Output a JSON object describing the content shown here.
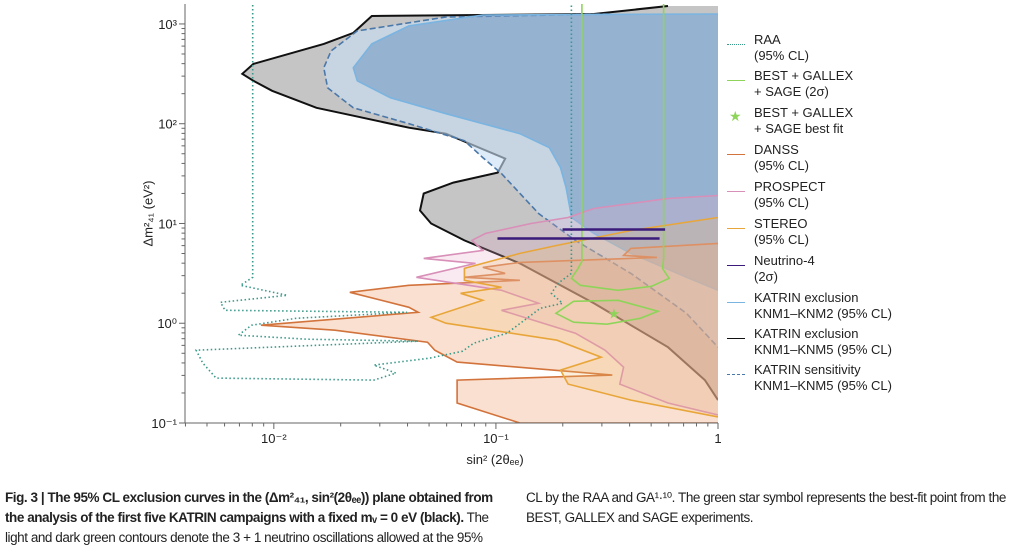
{
  "chart_data": {
    "type": "contour",
    "xlabel": "sin² (2θₑₑ)",
    "ylabel": "Δm²₄₁ (eV²)",
    "xscale": "log",
    "yscale": "log",
    "xlim_log10": [
      -2.4,
      0
    ],
    "ylim_log10": [
      -1,
      3.2
    ],
    "x_ticks": [
      {
        "v": -2,
        "label": "10⁻²"
      },
      {
        "v": -1,
        "label": "10⁻¹"
      },
      {
        "v": 0,
        "label": "1"
      }
    ],
    "y_ticks": [
      {
        "v": -1,
        "label": "10⁻¹"
      },
      {
        "v": 0,
        "label": "10⁰"
      },
      {
        "v": 1,
        "label": "10¹"
      },
      {
        "v": 2,
        "label": "10²"
      },
      {
        "v": 3,
        "label": "10³"
      }
    ],
    "series": [
      {
        "name": "KATRIN exclusion KNM1–KNM5 (95% CL)",
        "color": "#111111",
        "fill": "rgba(150,150,150,0.55)",
        "style": "solid",
        "closeRight": true,
        "log10_points": [
          [
            -0.225,
            3.18
          ],
          [
            -0.559,
            3.1
          ],
          [
            -1.559,
            3.08
          ],
          [
            -1.642,
            2.91
          ],
          [
            -1.775,
            2.8
          ],
          [
            -2.092,
            2.6
          ],
          [
            -2.142,
            2.5
          ],
          [
            -2.092,
            2.43
          ],
          [
            -2.008,
            2.33
          ],
          [
            -1.808,
            2.16
          ],
          [
            -1.642,
            2.08
          ],
          [
            -1.392,
            1.96
          ],
          [
            -1.225,
            1.9
          ],
          [
            -0.958,
            1.65
          ],
          [
            -0.992,
            1.51
          ],
          [
            -1.192,
            1.41
          ],
          [
            -1.325,
            1.3
          ],
          [
            -1.342,
            1.13
          ],
          [
            -1.292,
            1.0
          ],
          [
            -1.142,
            0.83
          ],
          [
            -0.892,
            0.6
          ],
          [
            -0.559,
            0.2
          ],
          [
            -0.225,
            -0.24
          ],
          [
            -0.059,
            -0.57
          ],
          [
            0,
            -0.77
          ]
        ]
      },
      {
        "name": "KATRIN sensitivity KNM1–KNM5 (95% CL)",
        "color": "#4a78a8",
        "fill": "rgba(200,222,245,0.6)",
        "style": "dashed",
        "closeRight": true,
        "log10_points": [
          [
            -0.492,
            3.1
          ],
          [
            -1.225,
            3.07
          ],
          [
            -1.624,
            2.93
          ],
          [
            -1.742,
            2.73
          ],
          [
            -1.775,
            2.56
          ],
          [
            -1.758,
            2.36
          ],
          [
            -1.642,
            2.16
          ],
          [
            -1.392,
            2.0
          ],
          [
            -1.142,
            1.83
          ],
          [
            -1.059,
            1.66
          ],
          [
            -0.975,
            1.5
          ],
          [
            -0.808,
            1.1
          ],
          [
            -0.642,
            0.83
          ],
          [
            -0.392,
            0.5
          ],
          [
            -0.142,
            0.1
          ],
          [
            0,
            -0.24
          ]
        ]
      },
      {
        "name": "KATRIN exclusion KNM1–KNM2 (95% CL)",
        "color": "#7ab4e0",
        "fill": "rgba(110,150,195,0.55)",
        "style": "solid",
        "closeRight": true,
        "log10_points": [
          [
            0,
            3.1
          ],
          [
            -1.059,
            3.09
          ],
          [
            -1.392,
            2.98
          ],
          [
            -1.559,
            2.8
          ],
          [
            -1.642,
            2.56
          ],
          [
            -1.624,
            2.43
          ],
          [
            -1.475,
            2.26
          ],
          [
            -1.225,
            2.1
          ],
          [
            -0.892,
            1.9
          ],
          [
            -0.759,
            1.76
          ],
          [
            -0.709,
            1.56
          ],
          [
            -0.684,
            1.36
          ],
          [
            -0.659,
            1.06
          ],
          [
            -0.559,
            0.9
          ],
          [
            -0.392,
            0.7
          ],
          [
            -0.142,
            0.46
          ],
          [
            0,
            0.33
          ]
        ]
      },
      {
        "name": "DANSS (95% CL)",
        "color": "#d2733c",
        "fill": "rgba(240,165,120,0.35)",
        "style": "solid",
        "closeRight": false,
        "log10_points": [
          [
            0,
            0.8
          ],
          [
            -0.392,
            0.75
          ],
          [
            -0.425,
            0.68
          ],
          [
            -0.275,
            0.66
          ],
          [
            -0.892,
            0.61
          ],
          [
            -1.059,
            0.56
          ],
          [
            -0.958,
            0.5
          ],
          [
            -1.142,
            0.46
          ],
          [
            -0.892,
            0.43
          ],
          [
            -1.392,
            0.38
          ],
          [
            -1.658,
            0.31
          ],
          [
            -1.392,
            0.16
          ],
          [
            -1.35,
            0.11
          ],
          [
            -2.058,
            -0.02
          ],
          [
            -1.725,
            -0.07
          ],
          [
            -1.308,
            -0.19
          ],
          [
            -1.275,
            -0.27
          ],
          [
            -1.175,
            -0.39
          ],
          [
            -0.476,
            -0.52
          ],
          [
            -1.175,
            -0.57
          ],
          [
            -1.175,
            -0.8
          ],
          [
            -0.892,
            -1.0
          ],
          [
            0,
            -1.0
          ]
        ]
      },
      {
        "name": "PROSPECT (95% CL)",
        "color": "#d88fb8",
        "fill": "rgba(230,170,200,0.25)",
        "style": "solid",
        "closeRight": false,
        "log10_points": [
          [
            0,
            1.28
          ],
          [
            -0.225,
            1.25
          ],
          [
            -0.559,
            1.15
          ],
          [
            -0.675,
            1.06
          ],
          [
            -0.842,
            1.0
          ],
          [
            -1.048,
            0.9
          ],
          [
            -1.108,
            0.83
          ],
          [
            -1.059,
            0.73
          ],
          [
            -1.325,
            0.65
          ],
          [
            -1.092,
            0.6
          ],
          [
            -1.358,
            0.46
          ],
          [
            -0.975,
            0.33
          ],
          [
            -0.808,
            0.2
          ],
          [
            -0.975,
            0.13
          ],
          [
            -0.642,
            -0.1
          ],
          [
            -0.509,
            -0.27
          ],
          [
            -0.425,
            -0.44
          ],
          [
            -0.442,
            -0.61
          ],
          [
            -0.225,
            -0.8
          ],
          [
            0,
            -0.92
          ]
        ]
      },
      {
        "name": "STEREO (95% CL)",
        "color": "#e8a63a",
        "fill": "rgba(240,190,110,0.25)",
        "style": "solid",
        "closeRight": false,
        "log10_points": [
          [
            0,
            1.06
          ],
          [
            -0.392,
            0.93
          ],
          [
            -0.725,
            0.78
          ],
          [
            -0.892,
            0.7
          ],
          [
            -1.142,
            0.55
          ],
          [
            -1.142,
            0.43
          ],
          [
            -0.975,
            0.36
          ],
          [
            -1.159,
            0.3
          ],
          [
            -1.059,
            0.23
          ],
          [
            -1.292,
            0.06
          ],
          [
            -1.225,
            0.0
          ],
          [
            -0.725,
            -0.17
          ],
          [
            -0.526,
            -0.34
          ],
          [
            -0.709,
            -0.47
          ],
          [
            -0.675,
            -0.61
          ],
          [
            -0.392,
            -0.77
          ],
          [
            0,
            -0.94
          ]
        ]
      },
      {
        "name": "RAA (95% CL)",
        "color": "#3a9a8a",
        "fill": "none",
        "style": "dotted",
        "closeRight": false,
        "log10_points": [
          [
            -2.095,
            3.19
          ],
          [
            -2.095,
            0.46
          ],
          [
            -2.15,
            0.38
          ],
          [
            -1.94,
            0.28
          ],
          [
            -2.24,
            0.21
          ],
          [
            -2.22,
            0.13
          ],
          [
            -1.4,
            0.11
          ],
          [
            -1.9,
            0.05
          ],
          [
            -2.1,
            -0.02
          ],
          [
            -2.16,
            -0.12
          ],
          [
            -1.85,
            -0.16
          ],
          [
            -1.35,
            -0.18
          ],
          [
            -2.35,
            -0.27
          ],
          [
            -2.32,
            -0.4
          ],
          [
            -2.26,
            -0.55
          ],
          [
            -1.55,
            -0.57
          ],
          [
            -1.45,
            -0.5
          ],
          [
            -1.55,
            -0.42
          ],
          [
            -1.3,
            -0.35
          ],
          [
            -1.15,
            -0.28
          ],
          [
            -1.1,
            -0.2
          ],
          [
            -0.95,
            -0.1
          ],
          [
            -0.8,
            0.15
          ],
          [
            -0.7,
            0.2
          ],
          [
            -0.75,
            0.3
          ],
          [
            -0.72,
            0.4
          ],
          [
            -0.66,
            0.5
          ],
          [
            -0.66,
            3.19
          ]
        ]
      },
      {
        "name": "BEST + GALLEX + SAGE (2σ)",
        "color": "#8fd45a",
        "fill": "none",
        "style": "solid",
        "closeRight": false,
        "log10_points": [
          [
            -0.613,
            3.2
          ],
          [
            -0.613,
            0.62
          ],
          [
            -0.63,
            0.55
          ],
          [
            -0.66,
            0.45
          ],
          [
            -0.62,
            0.38
          ],
          [
            -0.45,
            0.33
          ],
          [
            -0.3,
            0.37
          ],
          [
            -0.22,
            0.45
          ],
          [
            -0.25,
            0.55
          ],
          [
            -0.245,
            0.65
          ],
          [
            -0.245,
            3.2
          ]
        ]
      },
      {
        "name": "BEST + GALLEX + SAGE (2σ) inner contour",
        "color": "#8fd45a",
        "fill": "none",
        "style": "solid",
        "closed": true,
        "closeRight": false,
        "log10_points": [
          [
            -0.73,
            0.1
          ],
          [
            -0.65,
            0.22
          ],
          [
            -0.45,
            0.23
          ],
          [
            -0.27,
            0.12
          ],
          [
            -0.35,
            0.05
          ],
          [
            -0.5,
            -0.01
          ],
          [
            -0.65,
            0.01
          ]
        ]
      }
    ],
    "neutrino4": {
      "name": "Neutrino-4 (2σ)",
      "color": "#3a1a7a",
      "bars": [
        {
          "sin2_log10": [
            -0.7,
            -0.238
          ],
          "dm2_log10": 0.94
        },
        {
          "sin2_log10": [
            -0.993,
            -0.263
          ],
          "dm2_log10": 0.85
        }
      ]
    },
    "best_fit": {
      "name": "BEST + GALLEX + SAGE best fit",
      "color": "#8fd45a",
      "sin2": 0.34,
      "dm2": 1.25
    }
  },
  "legend": [
    {
      "label": "RAA\n(95% CL)",
      "color": "#3a9a8a",
      "style": "dotted"
    },
    {
      "label": "BEST + GALLEX\n+ SAGE (2σ)",
      "color": "#8fd45a",
      "style": "solid"
    },
    {
      "label": "BEST + GALLEX\n+ SAGE best fit",
      "color": "#8fd45a",
      "style": "star",
      "symbol": "★"
    },
    {
      "label": "DANSS\n(95% CL)",
      "color": "#d2733c",
      "style": "solid"
    },
    {
      "label": "PROSPECT\n(95% CL)",
      "color": "#d88fb8",
      "style": "solid"
    },
    {
      "label": "STEREO\n(95% CL)",
      "color": "#e8a63a",
      "style": "solid"
    },
    {
      "label": "Neutrino-4\n(2σ)",
      "color": "#3a1a7a",
      "style": "solid"
    },
    {
      "label": "KATRIN exclusion\nKNM1–KNM2 (95% CL)",
      "color": "#7ab4e0",
      "style": "solid"
    },
    {
      "label": "KATRIN exclusion\nKNM1–KNM5 (95% CL)",
      "color": "#111111",
      "style": "solid"
    },
    {
      "label": "KATRIN sensitivity\nKNM1–KNM5 (95% CL)",
      "color": "#4a78a8",
      "style": "dashed"
    }
  ],
  "caption": {
    "label": "Fig. 3 | ",
    "bold": "The 95% CL exclusion curves in the (Δm²₄₁, sin²(2θₑₑ)) plane obtained from the analysis of the first five KATRIN campaigns with a fixed mᵥ = 0 eV (black).",
    "body": " The light and dark green contours denote the 3 + 1 neutrino oscillations allowed at the 95% CL by the RAA and GA¹·¹⁰. The green star symbol represents the best-fit point from the BEST, GALLEX and SAGE experiments."
  }
}
